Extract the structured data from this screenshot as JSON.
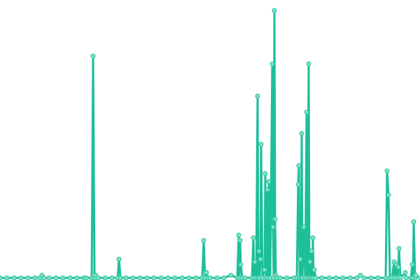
{
  "chart_data": {
    "type": "line",
    "title": "",
    "xlabel": "",
    "ylabel": "",
    "xlim": [
      0,
      600
    ],
    "ylim": [
      0,
      100
    ],
    "grid": false,
    "axes_visible": false,
    "markers": true,
    "colors": {
      "line": "#1dbf99",
      "marker_fill": "#7fe0c6",
      "marker_stroke": "#2cc49f"
    },
    "series": [
      {
        "points": [
          [
            0,
            0
          ],
          [
            10,
            0
          ],
          [
            20,
            0
          ],
          [
            30,
            0
          ],
          [
            40,
            0
          ],
          [
            50,
            0
          ],
          [
            57,
            0
          ],
          [
            60,
            1
          ],
          [
            63,
            0
          ],
          [
            70,
            0
          ],
          [
            80,
            0
          ],
          [
            90,
            0
          ],
          [
            100,
            0
          ],
          [
            110,
            0
          ],
          [
            120,
            0
          ],
          [
            123,
            0
          ],
          [
            131,
            0
          ],
          [
            133,
            83
          ],
          [
            135,
            0
          ],
          [
            137,
            1
          ],
          [
            140,
            0
          ],
          [
            150,
            0
          ],
          [
            160,
            0
          ],
          [
            168,
            0
          ],
          [
            170,
            7
          ],
          [
            172,
            0
          ],
          [
            180,
            0
          ],
          [
            190,
            0
          ],
          [
            200,
            0
          ],
          [
            210,
            0
          ],
          [
            220,
            0
          ],
          [
            230,
            0
          ],
          [
            240,
            0
          ],
          [
            250,
            0
          ],
          [
            260,
            0
          ],
          [
            270,
            0
          ],
          [
            280,
            0
          ],
          [
            289,
            0
          ],
          [
            291,
            14
          ],
          [
            293,
            0
          ],
          [
            295,
            2
          ],
          [
            297,
            0
          ],
          [
            300,
            0
          ],
          [
            310,
            0
          ],
          [
            320,
            0
          ],
          [
            330,
            1
          ],
          [
            339,
            0
          ],
          [
            341,
            16
          ],
          [
            342,
            0
          ],
          [
            343,
            14
          ],
          [
            344,
            5
          ],
          [
            346,
            0
          ],
          [
            350,
            0
          ],
          [
            360,
            0
          ],
          [
            362,
            15
          ],
          [
            363,
            0
          ],
          [
            364,
            6
          ],
          [
            366,
            0
          ],
          [
            368,
            68
          ],
          [
            369,
            0
          ],
          [
            370,
            10
          ],
          [
            371,
            0
          ],
          [
            372,
            7
          ],
          [
            373,
            50
          ],
          [
            375,
            0
          ],
          [
            378,
            3
          ],
          [
            379,
            39
          ],
          [
            380,
            0
          ],
          [
            382,
            33
          ],
          [
            383,
            0
          ],
          [
            384,
            36
          ],
          [
            386,
            0
          ],
          [
            389,
            80
          ],
          [
            390,
            19
          ],
          [
            391,
            0
          ],
          [
            392,
            100
          ],
          [
            393,
            22
          ],
          [
            394,
            1
          ],
          [
            396,
            0
          ],
          [
            400,
            0
          ],
          [
            410,
            0
          ],
          [
            420,
            0
          ],
          [
            424,
            0
          ],
          [
            426,
            35
          ],
          [
            427,
            42
          ],
          [
            428,
            0
          ],
          [
            429,
            7
          ],
          [
            430,
            0
          ],
          [
            431,
            54
          ],
          [
            432,
            0
          ],
          [
            434,
            19
          ],
          [
            436,
            0
          ],
          [
            438,
            62
          ],
          [
            439,
            0
          ],
          [
            441,
            80
          ],
          [
            442,
            0
          ],
          [
            443,
            6
          ],
          [
            444,
            0
          ],
          [
            445,
            10
          ],
          [
            446,
            0
          ],
          [
            447,
            15
          ],
          [
            448,
            0
          ],
          [
            449,
            3
          ],
          [
            451,
            0
          ],
          [
            460,
            0
          ],
          [
            470,
            0
          ],
          [
            480,
            0
          ],
          [
            490,
            0
          ],
          [
            500,
            0
          ],
          [
            510,
            0
          ],
          [
            515,
            1
          ],
          [
            520,
            0
          ],
          [
            530,
            0
          ],
          [
            540,
            0
          ],
          [
            551,
            0
          ],
          [
            553,
            40
          ],
          [
            555,
            31
          ],
          [
            557,
            0
          ],
          [
            560,
            0
          ],
          [
            563,
            6
          ],
          [
            564,
            0
          ],
          [
            566,
            5
          ],
          [
            568,
            0
          ],
          [
            569,
            4
          ],
          [
            570,
            11
          ],
          [
            572,
            0
          ],
          [
            579,
            2
          ],
          [
            580,
            0
          ],
          [
            587,
            0
          ],
          [
            589,
            5
          ],
          [
            590,
            0
          ],
          [
            591,
            21
          ],
          [
            593,
            0
          ],
          [
            594,
            1
          ],
          [
            600,
            0
          ]
        ]
      }
    ]
  }
}
